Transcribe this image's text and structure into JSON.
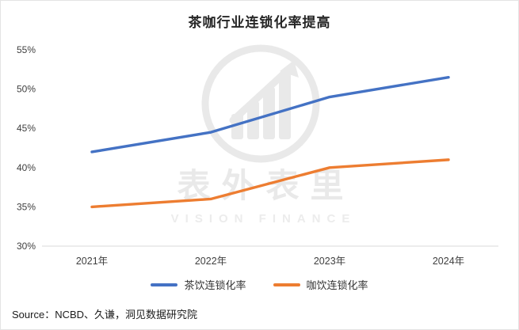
{
  "title": "茶咖行业连锁化率提高",
  "source": "Source：NCBD、久谦，洞见数据研究院",
  "watermark": {
    "name": "表外表里",
    "subtitle": "VISION FINANCE"
  },
  "legend": [
    {
      "label": "茶饮连锁化率",
      "color": "#4472c4"
    },
    {
      "label": "咖饮连锁化率",
      "color": "#ed7d31"
    }
  ],
  "chart_data": {
    "type": "line",
    "title": "茶咖行业连锁化率提高",
    "categories": [
      "2021年",
      "2022年",
      "2023年",
      "2024年"
    ],
    "series": [
      {
        "name": "茶饮连锁化率",
        "color": "#4472c4",
        "values": [
          42,
          44.5,
          49,
          51.5
        ]
      },
      {
        "name": "咖饮连锁化率",
        "color": "#ed7d31",
        "values": [
          35,
          36,
          40,
          41
        ]
      }
    ],
    "xlabel": "",
    "ylabel": "",
    "ylim": [
      30,
      55
    ],
    "yticks": [
      30,
      35,
      40,
      45,
      50,
      55
    ],
    "ytick_format": "{v}%",
    "grid": false,
    "legend_position": "bottom"
  }
}
